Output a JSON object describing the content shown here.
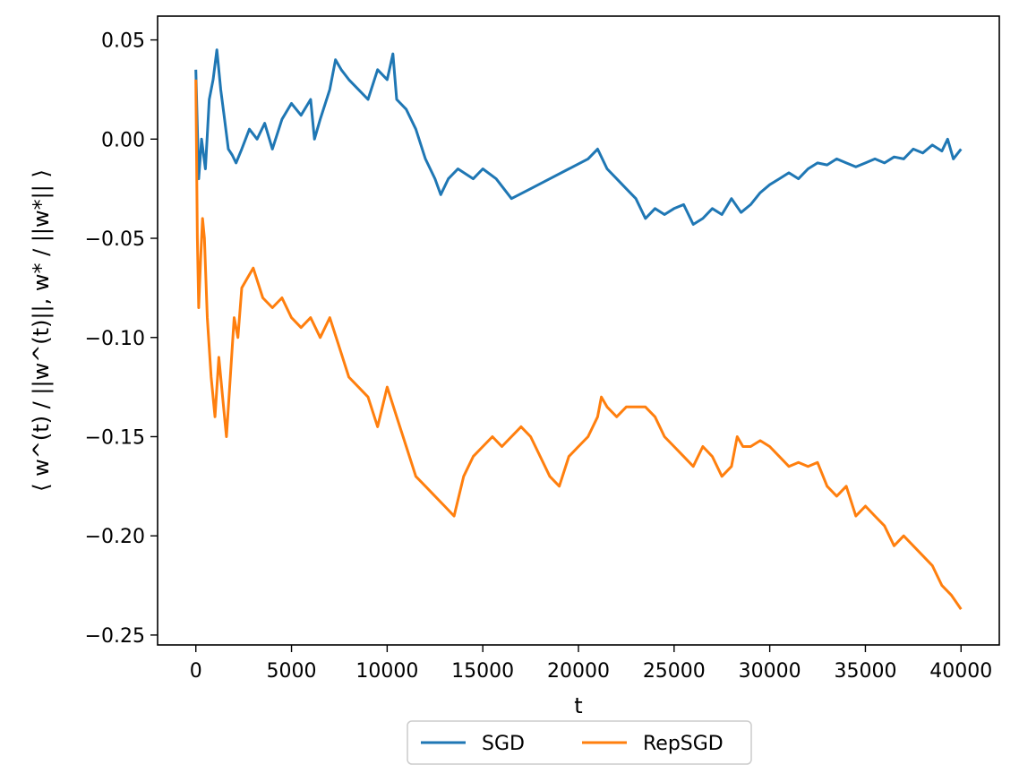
{
  "chart_data": {
    "type": "line",
    "title": "",
    "xlabel": "t",
    "ylabel": "⟨ w^(t) / ||w^(t)||, w* / ||w*|| ⟩",
    "xlim": [
      -2000,
      42000
    ],
    "ylim": [
      -0.255,
      0.062
    ],
    "xticks": [
      0,
      5000,
      10000,
      15000,
      20000,
      25000,
      30000,
      35000,
      40000
    ],
    "xtick_labels": [
      "0",
      "5000",
      "10000",
      "15000",
      "20000",
      "25000",
      "30000",
      "35000",
      "40000"
    ],
    "yticks": [
      0.05,
      0.0,
      -0.05,
      -0.1,
      -0.15,
      -0.2,
      -0.25
    ],
    "ytick_labels": [
      "0.05",
      "0.00",
      "−0.05",
      "−0.10",
      "−0.15",
      "−0.20",
      "−0.25"
    ],
    "grid": false,
    "legend": {
      "placement": "below-center",
      "ncol": 2
    },
    "series": [
      {
        "name": "SGD",
        "color": "#1f77b4",
        "x": [
          0,
          150,
          300,
          500,
          700,
          900,
          1100,
          1300,
          1500,
          1700,
          1900,
          2100,
          2400,
          2800,
          3200,
          3600,
          4000,
          4500,
          5000,
          5500,
          6000,
          6200,
          6500,
          7000,
          7300,
          7600,
          8000,
          8500,
          9000,
          9500,
          10000,
          10300,
          10500,
          11000,
          11500,
          12000,
          12500,
          12800,
          13200,
          13700,
          14500,
          15000,
          15700,
          16500,
          17500,
          18500,
          19500,
          20500,
          21000,
          21500,
          22000,
          22500,
          23000,
          23500,
          24000,
          24500,
          25000,
          25500,
          26000,
          26500,
          27000,
          27500,
          28000,
          28500,
          29000,
          29500,
          30000,
          30500,
          31000,
          31500,
          32000,
          32500,
          33000,
          33500,
          34000,
          34500,
          35000,
          35500,
          36000,
          36500,
          37000,
          37500,
          38000,
          38500,
          39000,
          39300,
          39600,
          40000
        ],
        "y": [
          0.035,
          -0.02,
          0.0,
          -0.015,
          0.02,
          0.03,
          0.045,
          0.025,
          0.01,
          -0.005,
          -0.008,
          -0.012,
          -0.005,
          0.005,
          0.0,
          0.008,
          -0.005,
          0.01,
          0.018,
          0.012,
          0.02,
          0.0,
          0.01,
          0.025,
          0.04,
          0.035,
          0.03,
          0.025,
          0.02,
          0.035,
          0.03,
          0.043,
          0.02,
          0.015,
          0.005,
          -0.01,
          -0.02,
          -0.028,
          -0.02,
          -0.015,
          -0.02,
          -0.015,
          -0.02,
          -0.03,
          -0.025,
          -0.02,
          -0.015,
          -0.01,
          -0.005,
          -0.015,
          -0.02,
          -0.025,
          -0.03,
          -0.04,
          -0.035,
          -0.038,
          -0.035,
          -0.033,
          -0.043,
          -0.04,
          -0.035,
          -0.038,
          -0.03,
          -0.037,
          -0.033,
          -0.027,
          -0.023,
          -0.02,
          -0.017,
          -0.02,
          -0.015,
          -0.012,
          -0.013,
          -0.01,
          -0.012,
          -0.014,
          -0.012,
          -0.01,
          -0.012,
          -0.009,
          -0.01,
          -0.005,
          -0.007,
          -0.003,
          -0.006,
          0.0,
          -0.01,
          -0.005
        ]
      },
      {
        "name": "RepSGD",
        "color": "#ff7f0e",
        "x": [
          0,
          80,
          150,
          250,
          350,
          450,
          600,
          800,
          1000,
          1200,
          1400,
          1600,
          1800,
          2000,
          2200,
          2400,
          2700,
          3000,
          3500,
          4000,
          4500,
          5000,
          5500,
          6000,
          6500,
          7000,
          7500,
          8000,
          8500,
          9000,
          9500,
          10000,
          10500,
          11000,
          11500,
          12000,
          12500,
          13000,
          13500,
          14000,
          14500,
          15000,
          15500,
          16000,
          17000,
          17500,
          18000,
          18500,
          19000,
          19500,
          20000,
          20500,
          21000,
          21200,
          21500,
          22000,
          22500,
          23000,
          23500,
          24000,
          24500,
          25000,
          25500,
          26000,
          26500,
          27000,
          27500,
          28000,
          28300,
          28600,
          29000,
          29500,
          30000,
          30500,
          31000,
          31500,
          32000,
          32500,
          33000,
          33500,
          34000,
          34500,
          35000,
          35500,
          36000,
          36500,
          37000,
          37500,
          38000,
          38500,
          39000,
          39500,
          40000
        ],
        "y": [
          0.03,
          -0.05,
          -0.085,
          -0.06,
          -0.04,
          -0.05,
          -0.09,
          -0.12,
          -0.14,
          -0.11,
          -0.13,
          -0.15,
          -0.12,
          -0.09,
          -0.1,
          -0.075,
          -0.07,
          -0.065,
          -0.08,
          -0.085,
          -0.08,
          -0.09,
          -0.095,
          -0.09,
          -0.1,
          -0.09,
          -0.105,
          -0.12,
          -0.125,
          -0.13,
          -0.145,
          -0.125,
          -0.14,
          -0.155,
          -0.17,
          -0.175,
          -0.18,
          -0.185,
          -0.19,
          -0.17,
          -0.16,
          -0.155,
          -0.15,
          -0.155,
          -0.145,
          -0.15,
          -0.16,
          -0.17,
          -0.175,
          -0.16,
          -0.155,
          -0.15,
          -0.14,
          -0.13,
          -0.135,
          -0.14,
          -0.135,
          -0.135,
          -0.135,
          -0.14,
          -0.15,
          -0.155,
          -0.16,
          -0.165,
          -0.155,
          -0.16,
          -0.17,
          -0.165,
          -0.15,
          -0.155,
          -0.155,
          -0.152,
          -0.155,
          -0.16,
          -0.165,
          -0.163,
          -0.165,
          -0.163,
          -0.175,
          -0.18,
          -0.175,
          -0.19,
          -0.185,
          -0.19,
          -0.195,
          -0.205,
          -0.2,
          -0.205,
          -0.21,
          -0.215,
          -0.225,
          -0.23,
          -0.237
        ]
      }
    ]
  }
}
